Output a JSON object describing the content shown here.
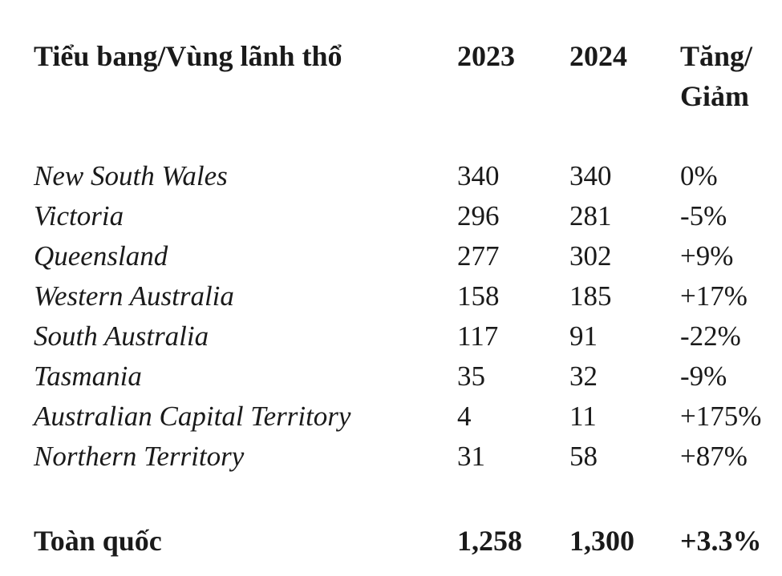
{
  "table": {
    "header": [
      "Tiểu bang/Vùng lãnh thổ",
      "2023",
      "2024",
      "Tăng/ Giảm"
    ],
    "rows": [
      [
        "New South Wales",
        "340",
        "340",
        "0%"
      ],
      [
        "Victoria",
        "296",
        "281",
        "-5%"
      ],
      [
        "Queensland",
        "277",
        "302",
        "+9%"
      ],
      [
        "Western Australia",
        "158",
        "185",
        "+17%"
      ],
      [
        "South Australia",
        "117",
        "91",
        "-22%"
      ],
      [
        "Tasmania",
        "35",
        "32",
        "-9%"
      ],
      [
        "Australian Capital Territory",
        "4",
        "11",
        "+175%"
      ],
      [
        "Northern Territory",
        "31",
        "58",
        "+87%"
      ]
    ],
    "total": [
      "Toàn quốc",
      "1,258",
      "1,300",
      "+3.3%"
    ]
  }
}
